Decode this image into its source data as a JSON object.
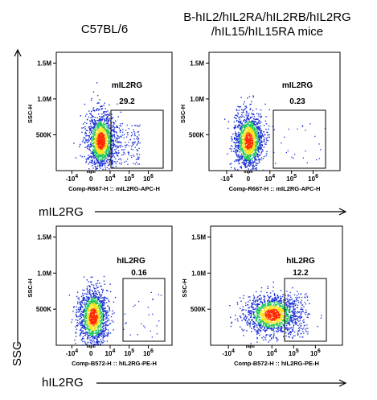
{
  "header": {
    "left_title": "C57BL/6",
    "right_title_line1": "B-hIL2/hIL2RA/hIL2RB/hIL2RG",
    "right_title_line2": "/hIL15/hIL15RA mice"
  },
  "captions": {
    "row1_x": "mIL2RG",
    "row2_x": "hIL2RG",
    "y": "SSC"
  },
  "colors": {
    "dense": "#ff2a00",
    "mid": "#f7e21a",
    "low": "#1ec85a",
    "sparse": "#1a2fd6",
    "arrow": "#000000"
  },
  "chart_data": [
    {
      "type": "scatter",
      "title": "mIL2RG",
      "gate_label": "mIL2RG",
      "gate_value": "29.2",
      "xlabel": "Comp-R667-H :: mIL2RG-APC-H",
      "ylabel": "SSC-H",
      "x_ticks": [
        "-10",
        "0",
        "10",
        "10",
        "10"
      ],
      "x_tick_exp": [
        "4",
        "",
        "4",
        "5",
        "6"
      ],
      "y_ticks": [
        "500K",
        "1.0M",
        "1.5M"
      ],
      "cluster": {
        "x_center": 0.5,
        "y_center": 420000
      }
    },
    {
      "type": "scatter",
      "title": "mIL2RG",
      "gate_label": "mIL2RG",
      "gate_value": "0.23",
      "xlabel": "Comp-R667-H :: mIL2RG-APC-H",
      "ylabel": "SSC-H",
      "x_ticks": [
        "-10",
        "0",
        "10",
        "10",
        "10"
      ],
      "x_tick_exp": [
        "4",
        "",
        "4",
        "5",
        "6"
      ],
      "y_ticks": [
        "500K",
        "1.0M",
        "1.5M"
      ],
      "cluster": {
        "x_center": 0.0,
        "y_center": 420000
      }
    },
    {
      "type": "scatter",
      "title": "hIL2RG",
      "gate_label": "hIL2RG",
      "gate_value": "0.16",
      "xlabel": "Comp-B572-H :: hIL2RG-PE-H",
      "ylabel": "SSC-H",
      "x_ticks": [
        "-10",
        "0",
        "10",
        "10",
        "10"
      ],
      "x_tick_exp": [
        "4",
        "",
        "4",
        "5",
        "6"
      ],
      "y_ticks": [
        "500K",
        "1.0M",
        "1.5M"
      ],
      "cluster": {
        "x_center": 0.1,
        "y_center": 400000
      }
    },
    {
      "type": "scatter",
      "title": "hIL2RG",
      "gate_label": "hIL2RG",
      "gate_value": "12.2",
      "xlabel": "Comp-B572-H :: hIL2RG-PE-H",
      "ylabel": "SSC-H",
      "x_ticks": [
        "-10",
        "0",
        "10",
        "10",
        "10"
      ],
      "x_tick_exp": [
        "4",
        "",
        "4",
        "5",
        "6"
      ],
      "y_ticks": [
        "500K",
        "1.0M",
        "1.5M"
      ],
      "cluster": {
        "x_center": 1.0,
        "y_center": 430000
      }
    }
  ]
}
